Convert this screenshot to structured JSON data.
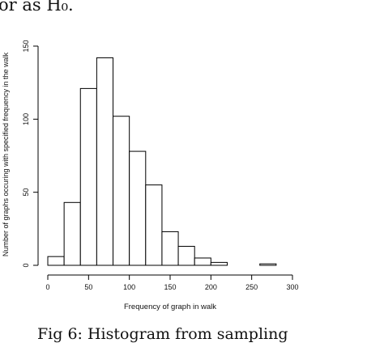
{
  "page": {
    "top_text": "or as H₀.",
    "caption": "Fig 6: Histogram from sampling"
  },
  "chart_data": {
    "type": "bar",
    "title": "",
    "xlabel": "Frequency of graph in walk",
    "ylabel": "Number of graphs occuring with specified frequency in the walk",
    "xlim": [
      0,
      300
    ],
    "ylim": [
      0,
      150
    ],
    "xticks": [
      0,
      50,
      100,
      150,
      200,
      250,
      300
    ],
    "yticks": [
      0,
      50,
      100,
      150
    ],
    "bins": [
      {
        "start": 0,
        "end": 20,
        "count": 6
      },
      {
        "start": 20,
        "end": 40,
        "count": 43
      },
      {
        "start": 40,
        "end": 60,
        "count": 121
      },
      {
        "start": 60,
        "end": 80,
        "count": 142
      },
      {
        "start": 80,
        "end": 100,
        "count": 102
      },
      {
        "start": 100,
        "end": 120,
        "count": 78
      },
      {
        "start": 120,
        "end": 140,
        "count": 55
      },
      {
        "start": 140,
        "end": 160,
        "count": 23
      },
      {
        "start": 160,
        "end": 180,
        "count": 13
      },
      {
        "start": 180,
        "end": 200,
        "count": 5
      },
      {
        "start": 200,
        "end": 220,
        "count": 2
      },
      {
        "start": 220,
        "end": 240,
        "count": 0
      },
      {
        "start": 240,
        "end": 260,
        "count": 0
      },
      {
        "start": 260,
        "end": 280,
        "count": 1
      }
    ],
    "bar_fill": "#ffffff",
    "bar_stroke": "#000000"
  }
}
